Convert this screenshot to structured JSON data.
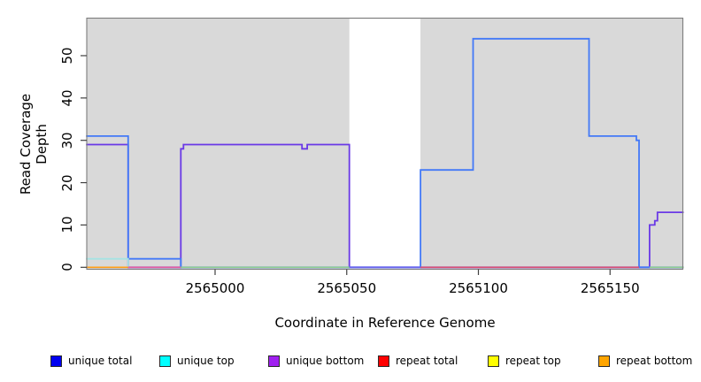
{
  "chart_data": {
    "type": "line",
    "subtype": "step-coverage",
    "title": "",
    "xlabel": "Coordinate in Reference Genome",
    "ylabel": "Read Coverage Depth",
    "xlim": [
      2564951,
      2565178
    ],
    "ylim": [
      0,
      59
    ],
    "x_ticks": [
      2565000,
      2565050,
      2565100,
      2565150
    ],
    "y_ticks": [
      0,
      10,
      20,
      30,
      40,
      50
    ],
    "grid": false,
    "legend_position": "bottom",
    "plot_bg": "#d9d9d9",
    "border_color": "#7d7d7d",
    "masked_region": {
      "x_start": 2565051,
      "x_end": 2565078,
      "fill": "#ffffff"
    },
    "series": [
      {
        "name": "unique bottom",
        "color": "#6a39e6",
        "points": [
          [
            2564951,
            29
          ],
          [
            2564967,
            29
          ],
          [
            2564967,
            0
          ],
          [
            2564987,
            0
          ],
          [
            2564987,
            28
          ],
          [
            2564988,
            28
          ],
          [
            2564988,
            29
          ],
          [
            2565033,
            29
          ],
          [
            2565033,
            28
          ],
          [
            2565035,
            28
          ],
          [
            2565035,
            29
          ],
          [
            2565051,
            29
          ],
          [
            2565051,
            0
          ],
          [
            2565165,
            0
          ],
          [
            2565165,
            10
          ],
          [
            2565167,
            10
          ],
          [
            2565167,
            11
          ],
          [
            2565168,
            11
          ],
          [
            2565168,
            13
          ],
          [
            2565178,
            13
          ]
        ]
      },
      {
        "name": "unique total",
        "color": "#4379f7",
        "points": [
          [
            2564951,
            31
          ],
          [
            2564967,
            31
          ],
          [
            2564967,
            2
          ],
          [
            2564987,
            2
          ],
          [
            2564987,
            0
          ],
          [
            2565078,
            0
          ],
          [
            2565078,
            23
          ],
          [
            2565098,
            23
          ],
          [
            2565098,
            54
          ],
          [
            2565142,
            54
          ],
          [
            2565142,
            31
          ],
          [
            2565160,
            31
          ],
          [
            2565160,
            30
          ],
          [
            2565161,
            30
          ],
          [
            2565161,
            0
          ],
          [
            2565178,
            0
          ]
        ]
      },
      {
        "name": "unique top",
        "color": "#a5e3e3",
        "points": [
          [
            2564951,
            2
          ],
          [
            2564967,
            2
          ],
          [
            2564967,
            0
          ]
        ]
      }
    ],
    "baseline_segments": [
      {
        "name": "repeat bottom visible",
        "color": "#ff9e15",
        "x_start": 2564951,
        "x_end": 2564967
      },
      {
        "name": "overlap magenta",
        "color": "#e35d9f",
        "x_start": 2564967,
        "x_end": 2564987
      },
      {
        "name": "overlap green",
        "color": "#8fcd8f",
        "x_start": 2564987,
        "x_end": 2565051
      },
      {
        "name": "overlap violet gap",
        "color": "#6a65ec",
        "x_start": 2565051,
        "x_end": 2565078
      },
      {
        "name": "overlap crimson",
        "color": "#d94f72",
        "x_start": 2565078,
        "x_end": 2565161
      },
      {
        "name": "overlap green right",
        "color": "#8fcd8f",
        "x_start": 2565165,
        "x_end": 2565178
      }
    ],
    "legend": [
      {
        "label": "unique total",
        "color": "#0000f0"
      },
      {
        "label": "unique top",
        "color": "#00ffff"
      },
      {
        "label": "unique bottom",
        "color": "#a020f0"
      },
      {
        "label": "repeat total",
        "color": "#ff0000"
      },
      {
        "label": "repeat top",
        "color": "#ffff00"
      },
      {
        "label": "repeat bottom",
        "color": "#ffa500"
      }
    ]
  }
}
